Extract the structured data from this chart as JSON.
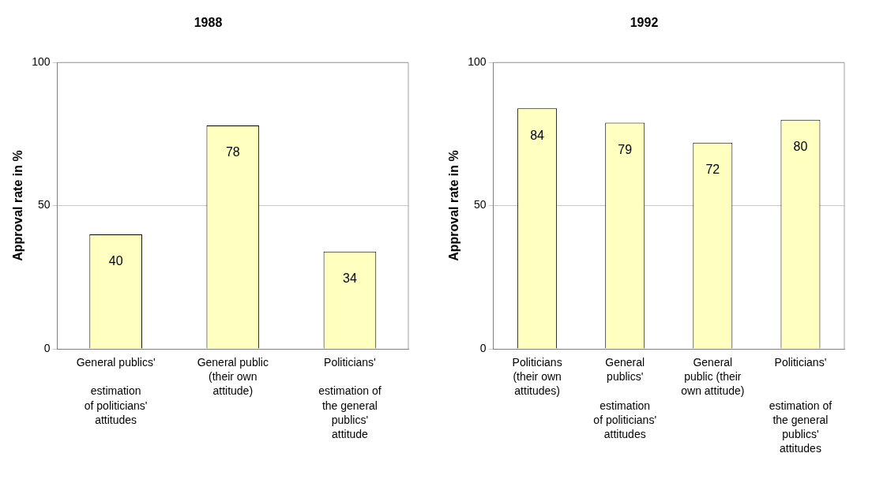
{
  "chart_data": [
    {
      "type": "bar",
      "title": "1988",
      "ylabel": "Approval rate in %",
      "categories": [
        "General publics'\n\nestimation\nof politicians'\nattitudes",
        "General public\n(their own\nattitude)",
        "Politicians'\n\nestimation of\nthe general\npublics'\nattitude"
      ],
      "values": [
        40,
        78,
        34
      ],
      "color": "#ffffc0",
      "ylim": [
        0,
        100
      ],
      "yticks": [
        0,
        50,
        100
      ],
      "grid": "y",
      "data_labels": true
    },
    {
      "type": "bar",
      "title": "1992",
      "ylabel": "Approval rate in %",
      "categories": [
        "Politicians\n(their own\nattitudes)",
        "General\npublics'\n\nestimation\nof politicians'\nattitudes",
        "General\npublic (their\nown attitude)",
        "Politicians'\n\n\nestimation of\nthe general\npublics'\nattitudes"
      ],
      "values": [
        84,
        79,
        72,
        80
      ],
      "color": "#ffffc0",
      "ylim": [
        0,
        100
      ],
      "yticks": [
        0,
        50,
        100
      ],
      "grid": "y",
      "data_labels": true
    }
  ]
}
